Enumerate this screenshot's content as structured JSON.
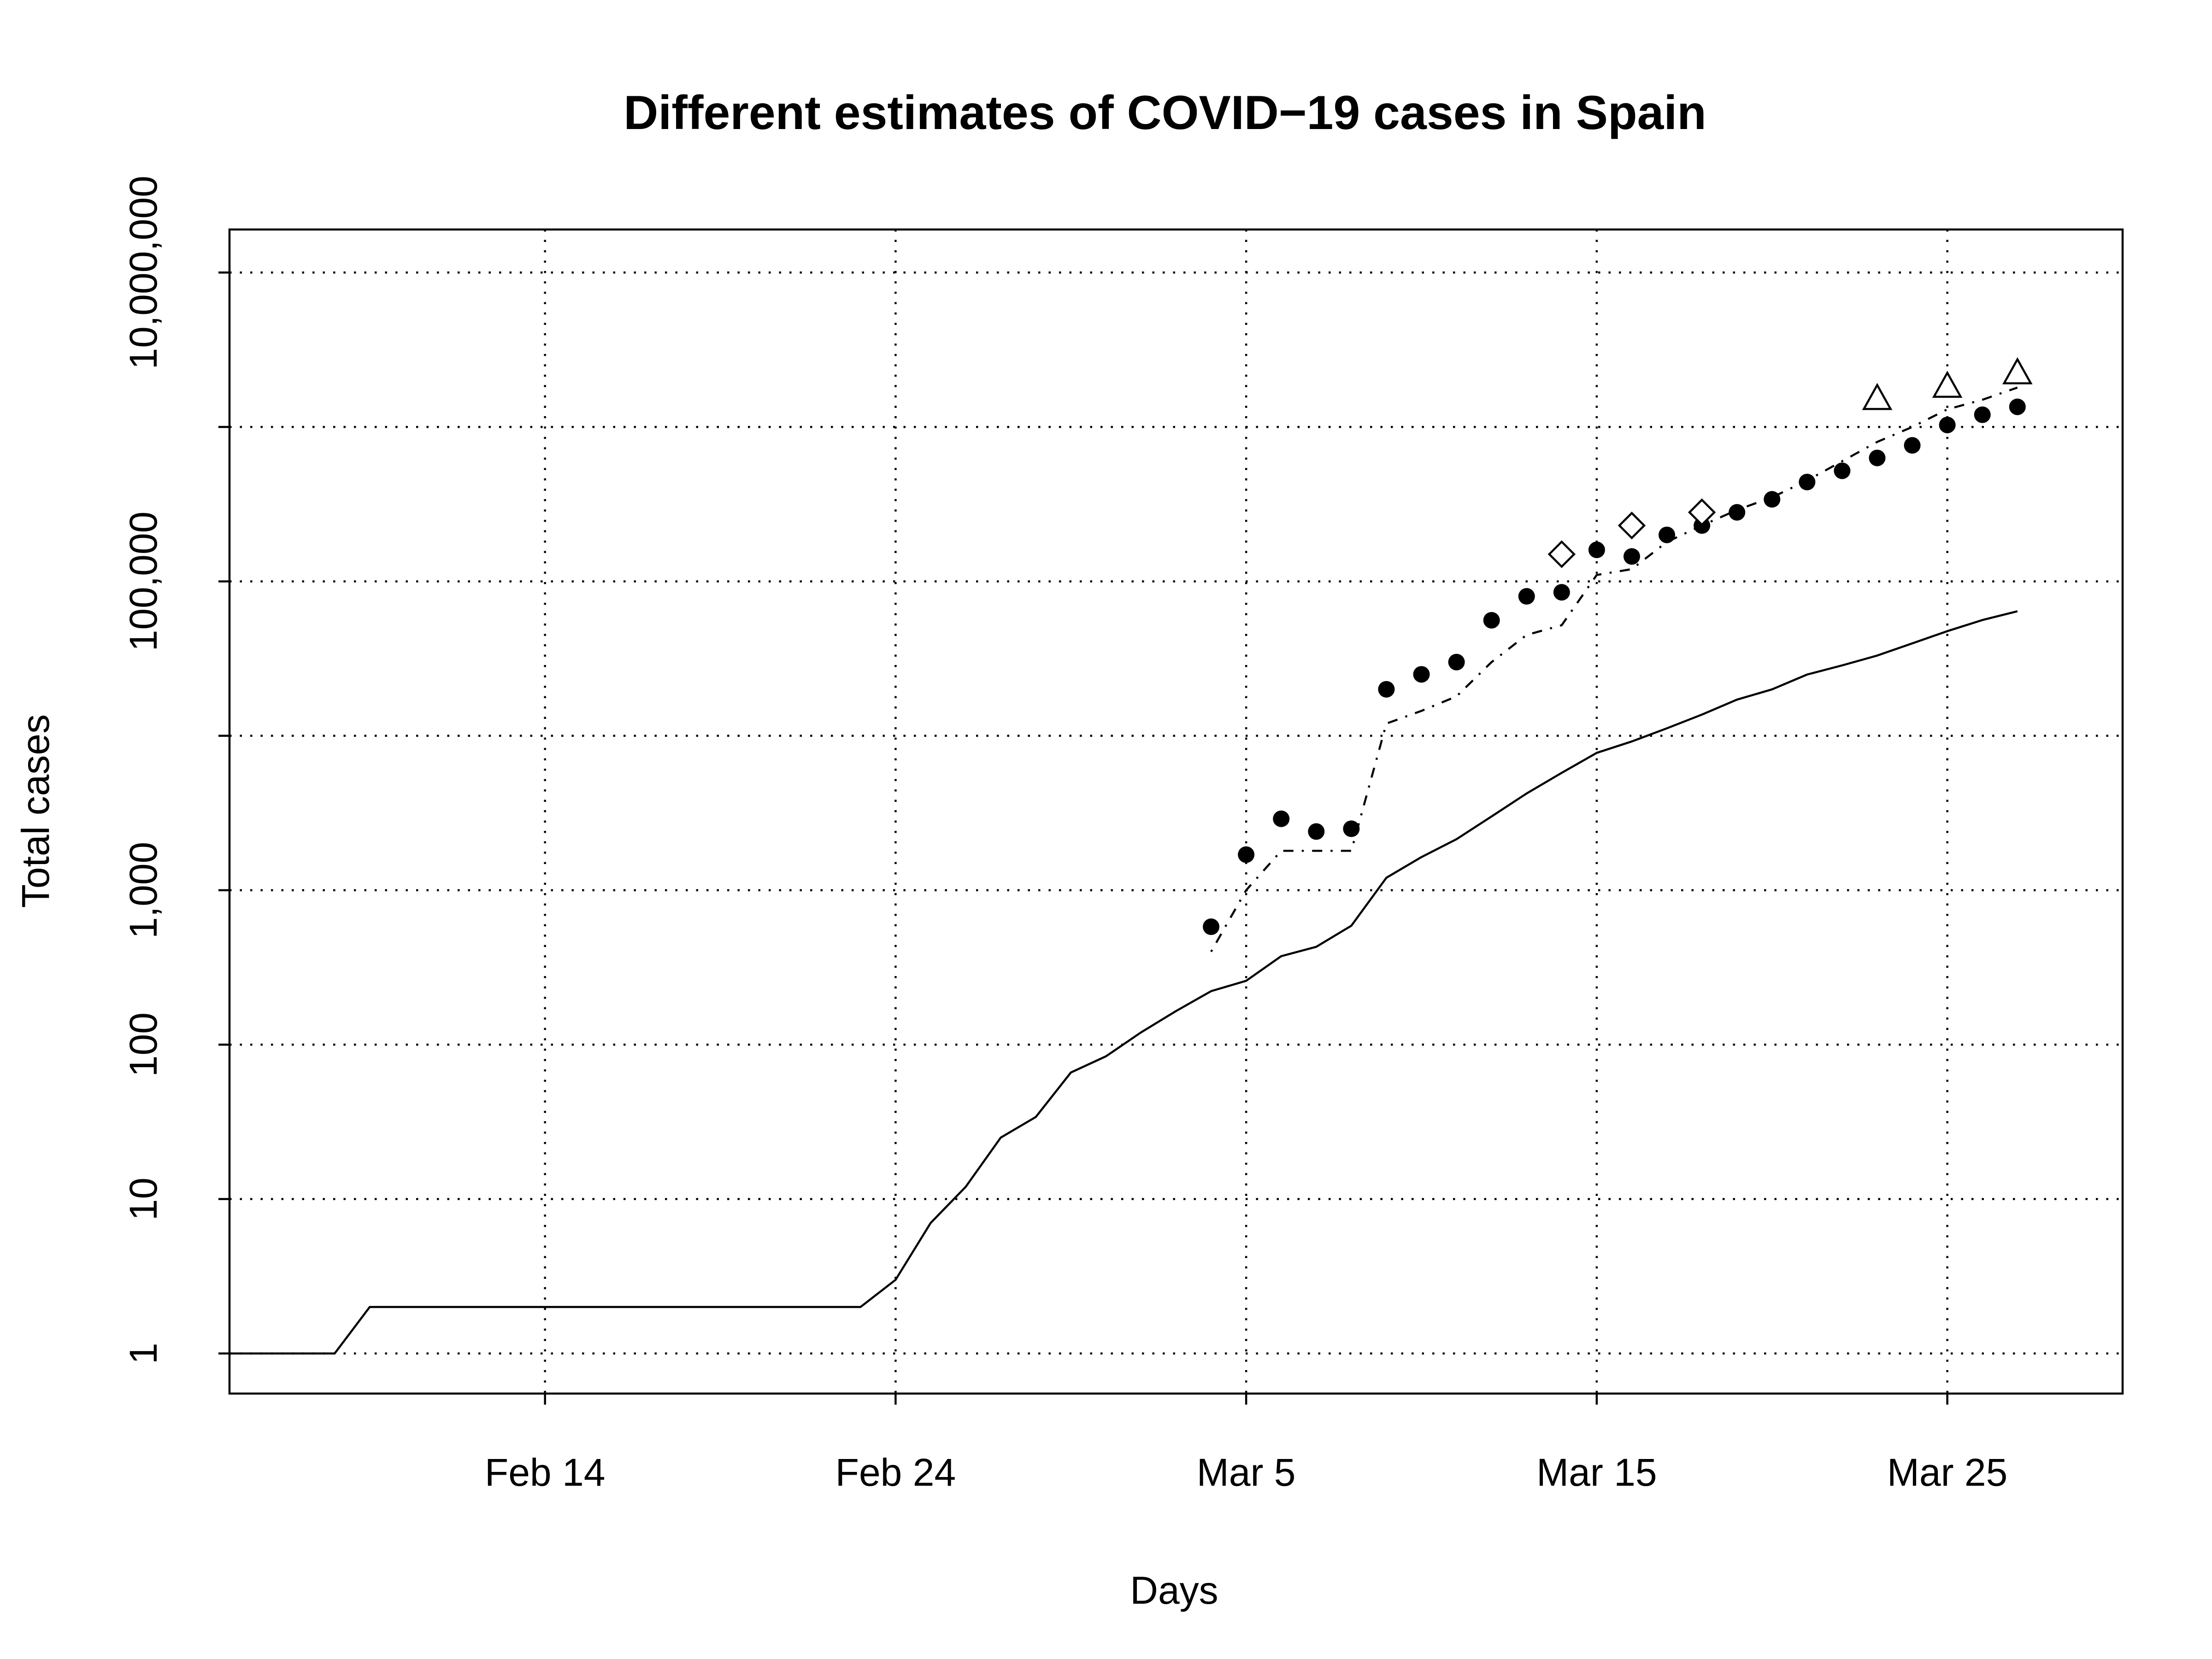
{
  "chart_data": {
    "type": "line",
    "title": "Different estimates of COVID−19 cases in Spain",
    "xlabel": "Days",
    "ylabel": "Total cases",
    "yscale": "log",
    "grid": true,
    "legend": "none",
    "x_ticks": [
      {
        "date": "2020-02-14",
        "label": "Feb 14"
      },
      {
        "date": "2020-02-24",
        "label": "Feb 24"
      },
      {
        "date": "2020-03-05",
        "label": "Mar 5"
      },
      {
        "date": "2020-03-15",
        "label": "Mar 15"
      },
      {
        "date": "2020-03-25",
        "label": "Mar 25"
      }
    ],
    "y_ticks": [
      {
        "value": 1,
        "label": "1"
      },
      {
        "value": 10,
        "label": "10"
      },
      {
        "value": 100,
        "label": "100"
      },
      {
        "value": 1000,
        "label": "1,000"
      },
      {
        "value": 100000,
        "label": "100,000"
      },
      {
        "value": 10000000,
        "label": "10,000,000"
      }
    ],
    "y_grid": [
      1,
      10,
      100,
      1000,
      10000,
      100000,
      1000000,
      10000000
    ],
    "xlim": [
      "2020-02-05",
      "2020-03-30"
    ],
    "ylim": [
      0.55,
      19000000
    ],
    "series": [
      {
        "style": "solid",
        "marker": "none",
        "x": [
          "2020-02-05",
          "2020-02-06",
          "2020-02-07",
          "2020-02-08",
          "2020-02-09",
          "2020-02-10",
          "2020-02-11",
          "2020-02-12",
          "2020-02-13",
          "2020-02-14",
          "2020-02-15",
          "2020-02-16",
          "2020-02-17",
          "2020-02-18",
          "2020-02-19",
          "2020-02-20",
          "2020-02-21",
          "2020-02-22",
          "2020-02-23",
          "2020-02-24",
          "2020-02-25",
          "2020-02-26",
          "2020-02-27",
          "2020-02-28",
          "2020-02-29",
          "2020-03-01",
          "2020-03-02",
          "2020-03-03",
          "2020-03-04",
          "2020-03-05",
          "2020-03-06",
          "2020-03-07",
          "2020-03-08",
          "2020-03-09",
          "2020-03-10",
          "2020-03-11",
          "2020-03-12",
          "2020-03-13",
          "2020-03-14",
          "2020-03-15",
          "2020-03-16",
          "2020-03-17",
          "2020-03-18",
          "2020-03-19",
          "2020-03-20",
          "2020-03-21",
          "2020-03-22",
          "2020-03-23",
          "2020-03-24",
          "2020-03-25",
          "2020-03-26",
          "2020-03-27"
        ],
        "values": [
          1,
          1,
          1,
          1,
          2,
          2,
          2,
          2,
          2,
          2,
          2,
          2,
          2,
          2,
          2,
          2,
          2,
          2,
          2,
          3,
          7,
          12,
          25,
          34,
          66,
          84,
          120,
          165,
          222,
          259,
          374,
          430,
          589,
          1204,
          1639,
          2140,
          3004,
          4231,
          5753,
          7753,
          9191,
          11178,
          13716,
          17147,
          19980,
          24926,
          28572,
          33089,
          39673,
          47610,
          56188,
          64059
        ]
      },
      {
        "style": "dotdash",
        "marker": "none",
        "x": [
          "2020-03-04",
          "2020-03-05",
          "2020-03-06",
          "2020-03-07",
          "2020-03-08",
          "2020-03-09",
          "2020-03-10",
          "2020-03-11",
          "2020-03-12",
          "2020-03-13",
          "2020-03-14",
          "2020-03-15",
          "2020-03-16",
          "2020-03-17",
          "2020-03-18",
          "2020-03-19",
          "2020-03-20",
          "2020-03-21",
          "2020-03-22",
          "2020-03-23",
          "2020-03-24",
          "2020-03-25",
          "2020-03-26",
          "2020-03-27"
        ],
        "values": [
          400,
          1000,
          1800,
          1800,
          1800,
          12000,
          14500,
          18000,
          30000,
          45000,
          52000,
          110000,
          120000,
          180000,
          230000,
          290000,
          350000,
          450000,
          600000,
          800000,
          1000000,
          1300000,
          1500000,
          1800000
        ]
      },
      {
        "style": "none",
        "marker": "filled-circle",
        "x": [
          "2020-03-04",
          "2020-03-05",
          "2020-03-06",
          "2020-03-07",
          "2020-03-08",
          "2020-03-09",
          "2020-03-10",
          "2020-03-11",
          "2020-03-12",
          "2020-03-13",
          "2020-03-14",
          "2020-03-15",
          "2020-03-16",
          "2020-03-17",
          "2020-03-18",
          "2020-03-19",
          "2020-03-20",
          "2020-03-21",
          "2020-03-22",
          "2020-03-23",
          "2020-03-24",
          "2020-03-25",
          "2020-03-26",
          "2020-03-27"
        ],
        "values": [
          580,
          1700,
          2900,
          2400,
          2500,
          20000,
          25000,
          30000,
          56000,
          80000,
          85000,
          160000,
          145000,
          200000,
          230000,
          280000,
          340000,
          440000,
          520000,
          630000,
          760000,
          1030000,
          1200000,
          1350000
        ]
      },
      {
        "style": "none",
        "marker": "open-diamond",
        "x": [
          "2020-03-14",
          "2020-03-16",
          "2020-03-18"
        ],
        "values": [
          150000,
          230000,
          280000
        ]
      },
      {
        "style": "none",
        "marker": "open-triangle",
        "x": [
          "2020-03-23",
          "2020-03-25",
          "2020-03-27"
        ],
        "values": [
          1500000,
          1800000,
          2200000
        ]
      }
    ]
  }
}
